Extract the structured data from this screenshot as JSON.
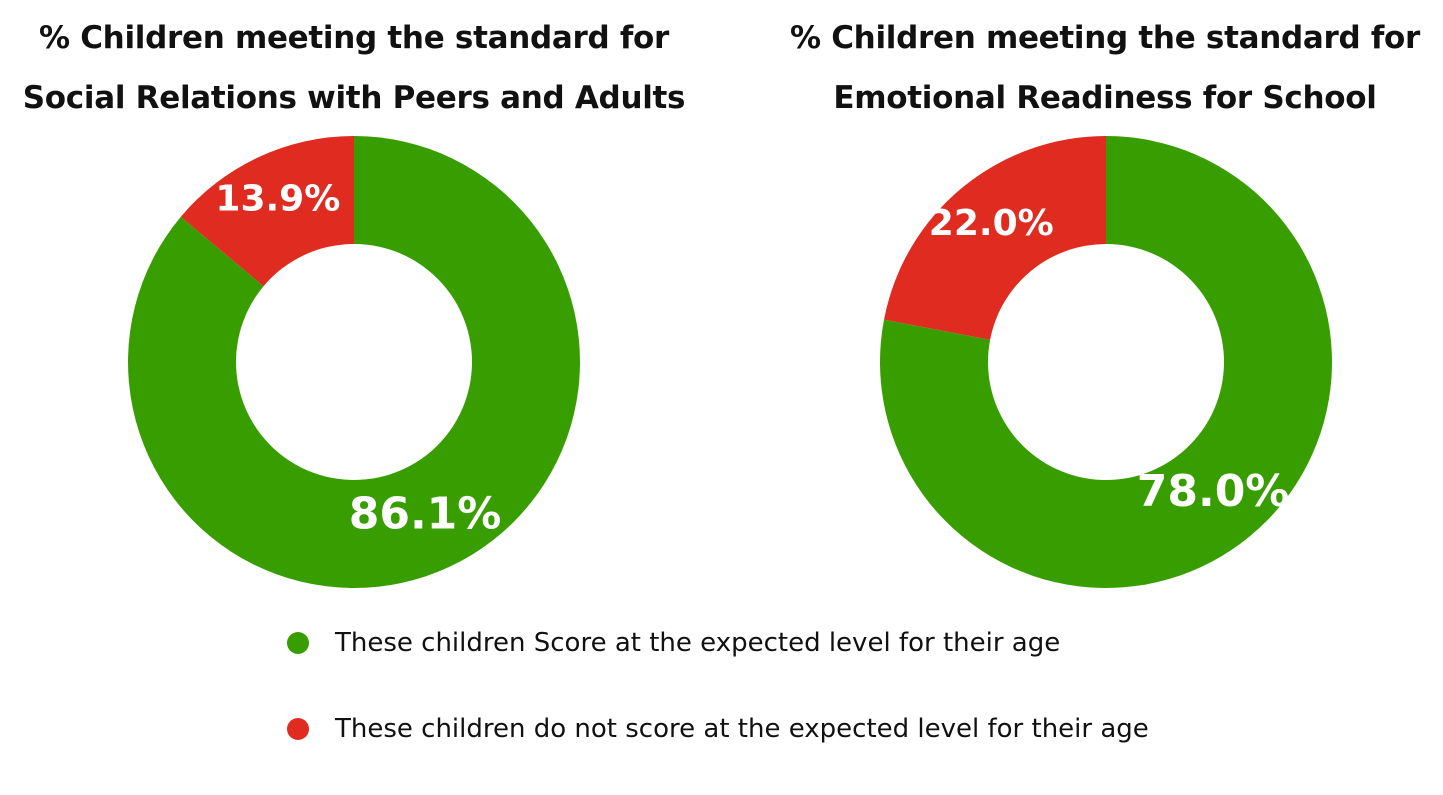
{
  "colors": {
    "meeting": "#389e00",
    "not_meeting": "#e02b20"
  },
  "legend": [
    {
      "label": "These children Score at the expected level for their age",
      "color": "#389e00"
    },
    {
      "label": "These children do not score at the expected level for their age",
      "color": "#e02b20"
    }
  ],
  "chart_data": [
    {
      "type": "pie",
      "donut": true,
      "title_line1": "% Children meeting the standard for",
      "title_line2": "Social Relations with Peers and Adults",
      "slices": [
        {
          "legend_label": "These children Score at the expected level for their age",
          "value": 86.1,
          "label": "86.1%",
          "color": "#389e00"
        },
        {
          "legend_label": "These children do not score at the expected level for their age",
          "value": 13.9,
          "label": "13.9%",
          "color": "#e02b20"
        }
      ],
      "legend_placement": "bottom"
    },
    {
      "type": "pie",
      "donut": true,
      "title_line1": "% Children meeting the standard for",
      "title_line2": "Emotional Readiness for School",
      "slices": [
        {
          "legend_label": "These children Score at the expected level for their age",
          "value": 78.0,
          "label": "78.0%",
          "color": "#389e00"
        },
        {
          "legend_label": "These children do not score at the expected level for their age",
          "value": 22.0,
          "label": "22.0%",
          "color": "#e02b20"
        }
      ],
      "legend_placement": "bottom"
    }
  ]
}
